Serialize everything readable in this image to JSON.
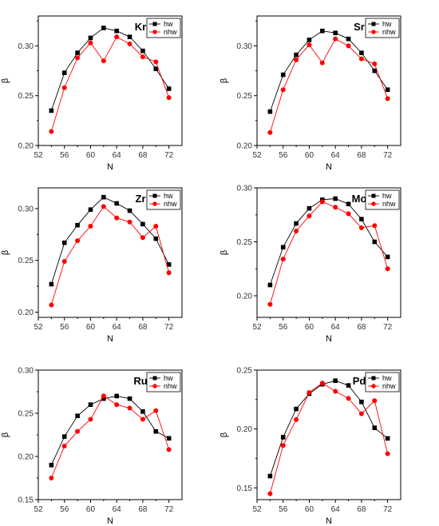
{
  "chart_data": [
    {
      "type": "line",
      "title": "Kr",
      "xlabel": "N",
      "ylabel": "β",
      "xlim": [
        52,
        74
      ],
      "ylim": [
        0.2,
        0.33
      ],
      "xticks": [
        52,
        56,
        60,
        64,
        68,
        72
      ],
      "yticks": [
        0.2,
        0.25,
        0.3
      ],
      "ytick_labels": [
        "0.20",
        "0.25",
        "0.30"
      ],
      "x": [
        54,
        56,
        58,
        60,
        62,
        64,
        66,
        68,
        70,
        72
      ],
      "series": [
        {
          "name": "hw",
          "values": [
            0.235,
            0.273,
            0.293,
            0.308,
            0.318,
            0.315,
            0.309,
            0.295,
            0.277,
            0.257
          ]
        },
        {
          "name": "nhw",
          "values": [
            0.214,
            0.258,
            0.288,
            0.303,
            0.285,
            0.309,
            0.302,
            0.289,
            0.284,
            0.248
          ]
        }
      ]
    },
    {
      "type": "line",
      "title": "Sr",
      "xlabel": "N",
      "ylabel": "β",
      "xlim": [
        52,
        74
      ],
      "ylim": [
        0.2,
        0.33
      ],
      "xticks": [
        52,
        56,
        60,
        64,
        68,
        72
      ],
      "yticks": [
        0.2,
        0.25,
        0.3
      ],
      "ytick_labels": [
        "0.20",
        "0.25",
        "0.30"
      ],
      "x": [
        54,
        56,
        58,
        60,
        62,
        64,
        66,
        68,
        70,
        72
      ],
      "series": [
        {
          "name": "hw",
          "values": [
            0.234,
            0.271,
            0.291,
            0.306,
            0.315,
            0.313,
            0.307,
            0.293,
            0.275,
            0.256
          ]
        },
        {
          "name": "nhw",
          "values": [
            0.213,
            0.256,
            0.286,
            0.301,
            0.283,
            0.307,
            0.3,
            0.287,
            0.282,
            0.247
          ]
        }
      ]
    },
    {
      "type": "line",
      "title": "Zr",
      "xlabel": "N",
      "ylabel": "β",
      "xlim": [
        52,
        74
      ],
      "ylim": [
        0.195,
        0.32
      ],
      "xticks": [
        52,
        56,
        60,
        64,
        68,
        72
      ],
      "yticks": [
        0.2,
        0.25,
        0.3
      ],
      "ytick_labels": [
        "0.20",
        "0.25",
        "0.30"
      ],
      "x": [
        54,
        56,
        58,
        60,
        62,
        64,
        66,
        68,
        70,
        72
      ],
      "series": [
        {
          "name": "hw",
          "values": [
            0.227,
            0.267,
            0.284,
            0.299,
            0.311,
            0.305,
            0.298,
            0.285,
            0.271,
            0.246
          ]
        },
        {
          "name": "nhw",
          "values": [
            0.207,
            0.249,
            0.269,
            0.283,
            0.302,
            0.291,
            0.287,
            0.272,
            0.283,
            0.238
          ]
        }
      ]
    },
    {
      "type": "line",
      "title": "Mo",
      "xlabel": "N",
      "ylabel": "β",
      "xlim": [
        52,
        74
      ],
      "ylim": [
        0.18,
        0.3
      ],
      "xticks": [
        52,
        56,
        60,
        64,
        68,
        72
      ],
      "yticks": [
        0.2,
        0.25,
        0.3
      ],
      "ytick_labels": [
        "0.20",
        "0.25",
        "0.30"
      ],
      "x": [
        54,
        56,
        58,
        60,
        62,
        64,
        66,
        68,
        70,
        72
      ],
      "series": [
        {
          "name": "hw",
          "values": [
            0.21,
            0.245,
            0.267,
            0.281,
            0.289,
            0.29,
            0.285,
            0.271,
            0.25,
            0.236
          ]
        },
        {
          "name": "nhw",
          "values": [
            0.192,
            0.234,
            0.26,
            0.274,
            0.287,
            0.282,
            0.276,
            0.263,
            0.265,
            0.225
          ]
        }
      ]
    },
    {
      "type": "line",
      "title": "Ru",
      "xlabel": "N",
      "ylabel": "β",
      "xlim": [
        52,
        74
      ],
      "ylim": [
        0.15,
        0.3
      ],
      "xticks": [
        52,
        56,
        60,
        64,
        68,
        72
      ],
      "yticks": [
        0.15,
        0.2,
        0.25,
        0.3
      ],
      "ytick_labels": [
        "0.15",
        "0.20",
        "0.25",
        "0.30"
      ],
      "x": [
        54,
        56,
        58,
        60,
        62,
        64,
        66,
        68,
        70,
        72
      ],
      "series": [
        {
          "name": "hw",
          "values": [
            0.19,
            0.223,
            0.247,
            0.26,
            0.267,
            0.27,
            0.267,
            0.252,
            0.229,
            0.221
          ]
        },
        {
          "name": "nhw",
          "values": [
            0.175,
            0.212,
            0.229,
            0.243,
            0.27,
            0.26,
            0.256,
            0.243,
            0.253,
            0.208
          ]
        }
      ]
    },
    {
      "type": "line",
      "title": "Pd",
      "xlabel": "N",
      "ylabel": "β",
      "xlim": [
        52,
        74
      ],
      "ylim": [
        0.14,
        0.25
      ],
      "xticks": [
        52,
        56,
        60,
        64,
        68,
        72
      ],
      "yticks": [
        0.15,
        0.2,
        0.25
      ],
      "ytick_labels": [
        "0.15",
        "0.20",
        "0.25"
      ],
      "x": [
        54,
        56,
        58,
        60,
        62,
        64,
        66,
        68,
        70,
        72
      ],
      "series": [
        {
          "name": "hw",
          "values": [
            0.16,
            0.193,
            0.217,
            0.23,
            0.238,
            0.241,
            0.237,
            0.223,
            0.201,
            0.192
          ]
        },
        {
          "name": "nhw",
          "values": [
            0.145,
            0.186,
            0.208,
            0.231,
            0.239,
            0.232,
            0.226,
            0.213,
            0.224,
            0.179
          ]
        }
      ]
    }
  ],
  "style": {
    "hw_color": "#000000",
    "nhw_color": "#ff0000",
    "hw_marker": "square",
    "nhw_marker": "circle",
    "legend_position": "top-right",
    "grid": false
  }
}
